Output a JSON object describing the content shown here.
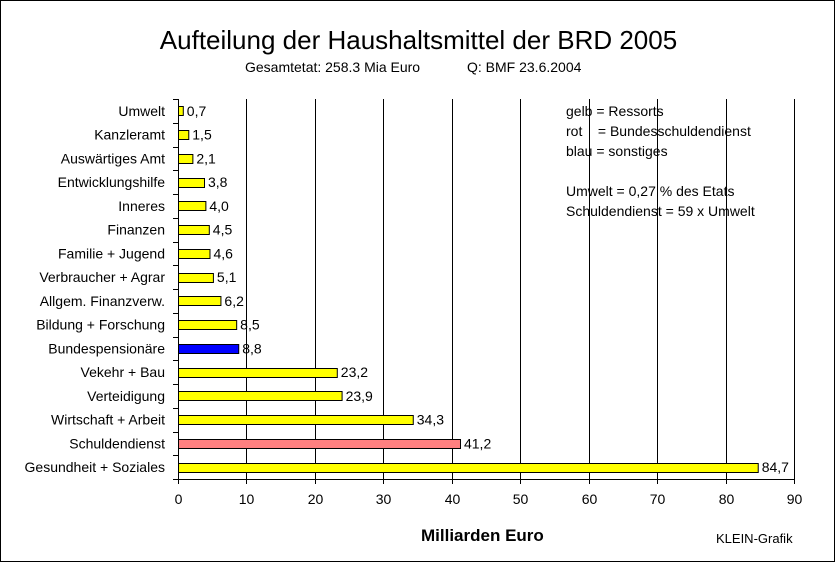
{
  "chart_data": {
    "type": "bar",
    "orientation": "horizontal",
    "title": "Aufteilung der Haushaltsmittel der BRD 2005",
    "subtitle_left": "Gesamtetat: 258.3 Mia Euro",
    "subtitle_right": "Q: BMF  23.6.2004",
    "xlabel": "Milliarden Euro",
    "xlim": [
      0,
      90
    ],
    "xticks": [
      0,
      10,
      20,
      30,
      40,
      50,
      60,
      70,
      80,
      90
    ],
    "grid": "vertical",
    "categories": [
      "Umwelt",
      "Kanzleramt",
      "Auswärtiges Amt",
      "Entwicklungshilfe",
      "Inneres",
      "Finanzen",
      "Familie + Jugend",
      "Verbraucher + Agrar",
      "Allgem. Finanzverw.",
      "Bildung + Forschung",
      "Bundespensionäre",
      "Vekehr + Bau",
      "Verteidigung",
      "Wirtschaft + Arbeit",
      "Schuldendienst",
      "Gesundheit + Soziales"
    ],
    "values": [
      0.7,
      1.5,
      2.1,
      3.8,
      4.0,
      4.5,
      4.6,
      5.1,
      6.2,
      8.5,
      8.8,
      23.2,
      23.9,
      34.3,
      41.2,
      84.7
    ],
    "value_labels": [
      "0,7",
      "1,5",
      "2,1",
      "3,8",
      "4,0",
      "4,5",
      "4,6",
      "5,1",
      "6,2",
      "8,5",
      "8,8",
      "23,2",
      "23,9",
      "34,3",
      "41,2",
      "84,7"
    ],
    "bar_groups": [
      "ressort",
      "ressort",
      "ressort",
      "ressort",
      "ressort",
      "ressort",
      "ressort",
      "ressort",
      "ressort",
      "ressort",
      "sonstiges",
      "ressort",
      "ressort",
      "ressort",
      "schuldendienst",
      "ressort"
    ],
    "colors": {
      "ressort": "#ffff00",
      "schuldendienst": "#ff8080",
      "sonstiges": "#0000ff"
    },
    "annotations": [
      "gelb = Ressorts",
      "rot    = Bundesschuldendienst",
      "blau = sonstiges",
      "",
      "Umwelt = 0,27 % des Etats",
      "Schuldendienst = 59 x Umwelt"
    ]
  },
  "credit": "KLEIN-Grafik"
}
